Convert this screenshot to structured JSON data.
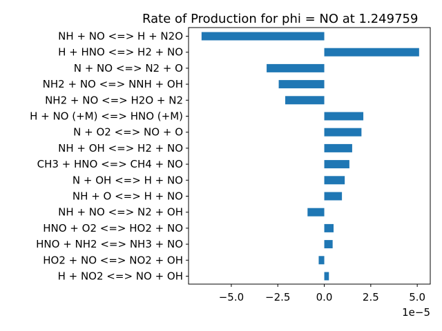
{
  "chart_data": {
    "type": "bar",
    "orientation": "horizontal",
    "title": "Rate of Production for phi = NO at 1.249759",
    "xlabel": "",
    "ylabel": "",
    "x_offset_text": "1e−5",
    "scale": 1e-05,
    "xlim": [
      -7.3,
      5.7
    ],
    "xticks": [
      -5.0,
      -2.5,
      0.0,
      2.5,
      5.0
    ],
    "xtick_labels": [
      "−5.0",
      "−2.5",
      "0.0",
      "2.5",
      "5.0"
    ],
    "grid": false,
    "legend": "none",
    "bar_color": "#1f77b4",
    "categories": [
      "NH + NO <=> H + N2O",
      "H + HNO <=> H2 + NO",
      "N + NO <=> N2 + O",
      "NH2 + NO <=> NNH + OH",
      "NH2 + NO <=> H2O + N2",
      "H + NO (+M) <=> HNO (+M)",
      "N + O2 <=> NO + O",
      "NH + OH <=> H2 + NO",
      "CH3 + HNO <=> CH4 + NO",
      "N + OH <=> H + NO",
      "NH + O <=> H + NO",
      "NH + NO <=> N2 + OH",
      "HNO + O2 <=> HO2 + NO",
      "HNO + NH2 <=> NH3 + NO",
      "HO2 + NO <=> NO2 + OH",
      "H + NO2 <=> NO + OH"
    ],
    "values": [
      -6.6,
      5.1,
      -3.1,
      -2.45,
      -2.1,
      2.1,
      2.0,
      1.5,
      1.35,
      1.1,
      0.95,
      -0.9,
      0.5,
      0.45,
      -0.3,
      0.25
    ]
  }
}
